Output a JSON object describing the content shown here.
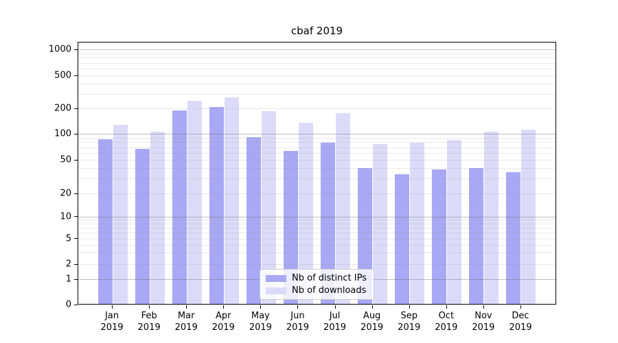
{
  "chart_data": {
    "type": "bar",
    "title": "cbaf 2019",
    "months": [
      "Jan",
      "Feb",
      "Mar",
      "Apr",
      "May",
      "Jun",
      "Jul",
      "Aug",
      "Sep",
      "Oct",
      "Nov",
      "Dec"
    ],
    "year": "2019",
    "series": [
      {
        "name": "Nb of distinct IPs",
        "color": "#a8a8f4",
        "values": [
          85,
          66,
          185,
          202,
          90,
          62,
          77,
          39,
          33,
          38,
          39,
          35
        ]
      },
      {
        "name": "Nb of downloads",
        "color": "#dbdbf9",
        "values": [
          125,
          104,
          240,
          265,
          182,
          133,
          172,
          75,
          77,
          83,
          104,
          110
        ]
      }
    ],
    "yscale": "symlog",
    "ylabel": "",
    "xlabel": "",
    "yticks": [
      0,
      1,
      2,
      5,
      10,
      20,
      50,
      100,
      200,
      500,
      1000
    ],
    "decade_ticks": [
      1,
      10,
      100,
      1000
    ],
    "minor_ticks": [
      3,
      4,
      6,
      7,
      8,
      9,
      30,
      40,
      60,
      70,
      80,
      90,
      300,
      400,
      600,
      700,
      800,
      900
    ],
    "grid": true,
    "legend_position": "lower center"
  }
}
